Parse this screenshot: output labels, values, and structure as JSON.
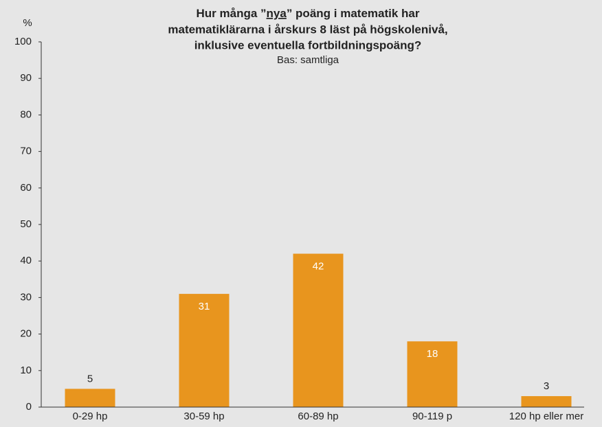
{
  "chart_data": {
    "type": "bar",
    "title": [
      [
        "Hur många ”",
        "nya",
        "” poäng i matematik har"
      ],
      [
        "matematiklärarna i årskurs 8 läst på högskolenivå,"
      ],
      [
        "inklusive eventuella fortbildningspoäng?"
      ]
    ],
    "subtitle": "Bas: samtliga",
    "y_label": "%",
    "categories": [
      "0-29 hp",
      "30-59 hp",
      "60-89 hp",
      "90-119 p",
      "120 hp eller mer"
    ],
    "values": [
      5,
      31,
      42,
      18,
      3
    ],
    "color": "#e8951e",
    "ylim": [
      0,
      100
    ],
    "yticks": [
      0,
      10,
      20,
      30,
      40,
      50,
      60,
      70,
      80,
      90,
      100
    ]
  }
}
